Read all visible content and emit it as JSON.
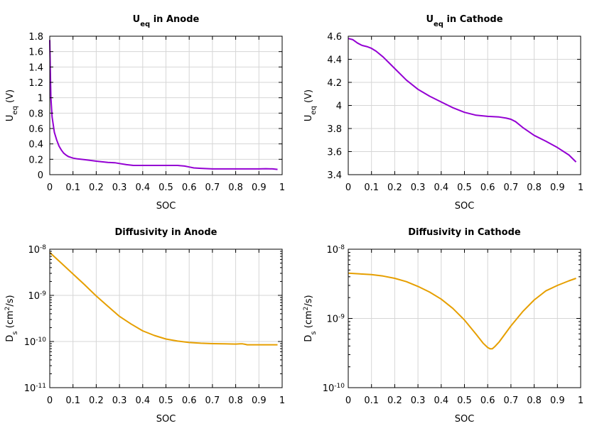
{
  "chart_data": [
    {
      "id": "ueq-anode",
      "type": "line",
      "title": {
        "main": "U",
        "sub": "eq",
        "rest": " in Anode"
      },
      "xlabel": "SOC",
      "ylabel": {
        "main": "U",
        "sub": "eq",
        "rest": " (V)"
      },
      "xlim": [
        0,
        1
      ],
      "ylim": [
        0,
        1.8
      ],
      "xscale": "linear",
      "yscale": "linear",
      "grid": true,
      "xticks": [
        0,
        0.1,
        0.2,
        0.3,
        0.4,
        0.5,
        0.6,
        0.7,
        0.8,
        0.9,
        1
      ],
      "xtick_labels": [
        "0",
        "0.1",
        "0.2",
        "0.3",
        "0.4",
        "0.5",
        "0.6",
        "0.7",
        "0.8",
        "0.9",
        "1"
      ],
      "yticks": [
        0,
        0.2,
        0.4,
        0.6,
        0.8,
        1,
        1.2,
        1.4,
        1.6,
        1.8
      ],
      "ytick_labels": [
        "0",
        "0.2",
        "0.4",
        "0.6",
        "0.8",
        "1",
        "1.2",
        "1.4",
        "1.6",
        "1.8"
      ],
      "series": [
        {
          "color": "#9400d3",
          "x": [
            0.0,
            0.002,
            0.005,
            0.01,
            0.02,
            0.03,
            0.04,
            0.05,
            0.06,
            0.07,
            0.08,
            0.09,
            0.1,
            0.12,
            0.15,
            0.2,
            0.25,
            0.28,
            0.3,
            0.33,
            0.36,
            0.4,
            0.45,
            0.5,
            0.55,
            0.58,
            0.6,
            0.62,
            0.65,
            0.7,
            0.75,
            0.8,
            0.85,
            0.9,
            0.93,
            0.96,
            0.98
          ],
          "y": [
            1.75,
            1.4,
            1.0,
            0.75,
            0.55,
            0.45,
            0.37,
            0.32,
            0.28,
            0.255,
            0.235,
            0.225,
            0.215,
            0.205,
            0.195,
            0.175,
            0.16,
            0.155,
            0.145,
            0.13,
            0.12,
            0.12,
            0.12,
            0.12,
            0.12,
            0.112,
            0.1,
            0.088,
            0.082,
            0.075,
            0.075,
            0.075,
            0.075,
            0.075,
            0.078,
            0.075,
            0.068
          ]
        }
      ]
    },
    {
      "id": "ueq-cathode",
      "type": "line",
      "title": {
        "main": "U",
        "sub": "eq",
        "rest": " in Cathode"
      },
      "xlabel": "SOC",
      "ylabel": {
        "main": "U",
        "sub": "eq",
        "rest": " (V)"
      },
      "xlim": [
        0,
        1
      ],
      "ylim": [
        3.4,
        4.6
      ],
      "xscale": "linear",
      "yscale": "linear",
      "grid": true,
      "xticks": [
        0,
        0.1,
        0.2,
        0.3,
        0.4,
        0.5,
        0.6,
        0.7,
        0.8,
        0.9,
        1
      ],
      "xtick_labels": [
        "0",
        "0.1",
        "0.2",
        "0.3",
        "0.4",
        "0.5",
        "0.6",
        "0.7",
        "0.8",
        "0.9",
        "1"
      ],
      "yticks": [
        3.4,
        3.6,
        3.8,
        4.0,
        4.2,
        4.4,
        4.6
      ],
      "ytick_labels": [
        "3.4",
        "3.6",
        "3.8",
        "4",
        "4.2",
        "4.4",
        "4.6"
      ],
      "series": [
        {
          "color": "#9400d3",
          "x": [
            0.0,
            0.02,
            0.04,
            0.06,
            0.08,
            0.1,
            0.12,
            0.15,
            0.18,
            0.2,
            0.25,
            0.3,
            0.35,
            0.4,
            0.45,
            0.5,
            0.55,
            0.6,
            0.65,
            0.68,
            0.7,
            0.72,
            0.75,
            0.8,
            0.85,
            0.9,
            0.95,
            0.98
          ],
          "y": [
            4.58,
            4.57,
            4.54,
            4.52,
            4.51,
            4.495,
            4.47,
            4.42,
            4.36,
            4.32,
            4.22,
            4.14,
            4.08,
            4.03,
            3.98,
            3.94,
            3.915,
            3.905,
            3.9,
            3.89,
            3.88,
            3.86,
            3.81,
            3.74,
            3.69,
            3.635,
            3.57,
            3.51
          ]
        }
      ]
    },
    {
      "id": "diffusivity-anode",
      "type": "line",
      "title": {
        "main": "Diffusivity in Anode",
        "sub": "",
        "rest": ""
      },
      "xlabel": "SOC",
      "ylabel": {
        "main": "D",
        "sub": "s",
        "mid": " (cm",
        "sup": "2",
        "rest": "/s)"
      },
      "xlim": [
        0,
        1
      ],
      "ylim": [
        1e-11,
        1e-08
      ],
      "xscale": "linear",
      "yscale": "log",
      "grid": true,
      "xticks": [
        0,
        0.1,
        0.2,
        0.3,
        0.4,
        0.5,
        0.6,
        0.7,
        0.8,
        0.9,
        1
      ],
      "xtick_labels": [
        "0",
        "0.1",
        "0.2",
        "0.3",
        "0.4",
        "0.5",
        "0.6",
        "0.7",
        "0.8",
        "0.9",
        "1"
      ],
      "ytick_labels": [
        {
          "base": "10",
          "exp": "-11",
          "value": 1e-11
        },
        {
          "base": "10",
          "exp": "-10",
          "value": 1e-10
        },
        {
          "base": "10",
          "exp": "-9",
          "value": 1e-09
        },
        {
          "base": "10",
          "exp": "-8",
          "value": 1e-08
        }
      ],
      "series": [
        {
          "color": "#e69f00",
          "x": [
            0.0,
            0.05,
            0.1,
            0.15,
            0.2,
            0.25,
            0.3,
            0.35,
            0.4,
            0.45,
            0.5,
            0.55,
            0.6,
            0.65,
            0.7,
            0.75,
            0.8,
            0.82,
            0.83,
            0.84,
            0.85,
            0.9,
            0.95,
            0.98
          ],
          "y": [
            8.5e-09,
            5e-09,
            2.9e-09,
            1.7e-09,
            9.7e-10,
            5.8e-10,
            3.5e-10,
            2.4e-10,
            1.7e-10,
            1.35e-10,
            1.13e-10,
            1.02e-10,
            9.5e-11,
            9.2e-11,
            9e-11,
            8.9e-11,
            8.8e-11,
            8.9e-11,
            8.9e-11,
            8.7e-11,
            8.5e-11,
            8.5e-11,
            8.5e-11,
            8.5e-11
          ]
        }
      ]
    },
    {
      "id": "diffusivity-cathode",
      "type": "line",
      "title": {
        "main": "Diffusivity in Cathode",
        "sub": "",
        "rest": ""
      },
      "xlabel": "SOC",
      "ylabel": {
        "main": "D",
        "sub": "s",
        "mid": " (cm",
        "sup": "2",
        "rest": "/s)"
      },
      "xlim": [
        0,
        1
      ],
      "ylim": [
        1e-10,
        1e-08
      ],
      "xscale": "linear",
      "yscale": "log",
      "grid": true,
      "xticks": [
        0,
        0.1,
        0.2,
        0.3,
        0.4,
        0.5,
        0.6,
        0.7,
        0.8,
        0.9,
        1
      ],
      "xtick_labels": [
        "0",
        "0.1",
        "0.2",
        "0.3",
        "0.4",
        "0.5",
        "0.6",
        "0.7",
        "0.8",
        "0.9",
        "1"
      ],
      "ytick_labels": [
        {
          "base": "10",
          "exp": "-10",
          "value": 1e-10
        },
        {
          "base": "10",
          "exp": "-9",
          "value": 1e-09
        },
        {
          "base": "10",
          "exp": "-8",
          "value": 1e-08
        }
      ],
      "series": [
        {
          "color": "#e69f00",
          "x": [
            0.0,
            0.05,
            0.1,
            0.15,
            0.2,
            0.25,
            0.3,
            0.35,
            0.4,
            0.45,
            0.5,
            0.55,
            0.58,
            0.6,
            0.61,
            0.62,
            0.63,
            0.65,
            0.7,
            0.75,
            0.8,
            0.85,
            0.9,
            0.95,
            0.98
          ],
          "y": [
            4.5e-09,
            4.4e-09,
            4.3e-09,
            4.1e-09,
            3.8e-09,
            3.4e-09,
            2.9e-09,
            2.4e-09,
            1.9e-09,
            1.4e-09,
            9.5e-10,
            5.9e-10,
            4.4e-10,
            3.8e-10,
            3.65e-10,
            3.65e-10,
            3.9e-10,
            4.6e-10,
            7.8e-10,
            1.25e-09,
            1.85e-09,
            2.5e-09,
            3e-09,
            3.5e-09,
            3.8e-09
          ]
        }
      ]
    }
  ]
}
